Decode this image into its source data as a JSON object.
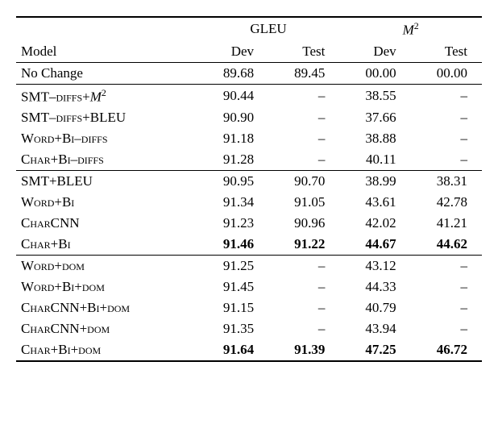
{
  "headers": {
    "gleu": "GLEU",
    "m2_html": "<span class=\"mitalic\">M</span><span class=\"sup\">2</span>",
    "model": "Model",
    "dev": "Dev",
    "test": "Test"
  },
  "groups": [
    {
      "rows": [
        {
          "label_html": "No Change",
          "gleu_dev": "89.68",
          "gleu_test": "89.45",
          "m2_dev": "00.00",
          "m2_test": "00.00",
          "bold": false
        }
      ]
    },
    {
      "rows": [
        {
          "label_html": "SMT<span class=\"sc\">–diffs</span>+<span class=\"mitalic\">M</span><span class=\"sup\">2</span>",
          "gleu_dev": "90.44",
          "gleu_test": "–",
          "m2_dev": "38.55",
          "m2_test": "–",
          "bold": false
        },
        {
          "label_html": "SMT<span class=\"sc\">–diffs</span>+BLEU",
          "gleu_dev": "90.90",
          "gleu_test": "–",
          "m2_dev": "37.66",
          "m2_test": "–",
          "bold": false
        },
        {
          "label_html": "<span class=\"sc\">Word+Bi–diffs</span>",
          "gleu_dev": "91.18",
          "gleu_test": "–",
          "m2_dev": "38.88",
          "m2_test": "–",
          "bold": false
        },
        {
          "label_html": "<span class=\"sc\">Char+Bi–diffs</span>",
          "gleu_dev": "91.28",
          "gleu_test": "–",
          "m2_dev": "40.11",
          "m2_test": "–",
          "bold": false
        }
      ]
    },
    {
      "rows": [
        {
          "label_html": "SMT+BLEU",
          "gleu_dev": "90.95",
          "gleu_test": "90.70",
          "m2_dev": "38.99",
          "m2_test": "38.31",
          "bold": false
        },
        {
          "label_html": "<span class=\"sc\">Word+Bi</span>",
          "gleu_dev": "91.34",
          "gleu_test": "91.05",
          "m2_dev": "43.61",
          "m2_test": "42.78",
          "bold": false
        },
        {
          "label_html": "<span class=\"sc\">CharCNN</span>",
          "gleu_dev": "91.23",
          "gleu_test": "90.96",
          "m2_dev": "42.02",
          "m2_test": "41.21",
          "bold": false
        },
        {
          "label_html": "<span class=\"sc\">Char+Bi</span>",
          "gleu_dev": "91.46",
          "gleu_test": "91.22",
          "m2_dev": "44.67",
          "m2_test": "44.62",
          "bold": true
        }
      ]
    },
    {
      "rows": [
        {
          "label_html": "<span class=\"sc\">Word+dom</span>",
          "gleu_dev": "91.25",
          "gleu_test": "–",
          "m2_dev": "43.12",
          "m2_test": "–",
          "bold": false
        },
        {
          "label_html": "<span class=\"sc\">Word+Bi+dom</span>",
          "gleu_dev": "91.45",
          "gleu_test": "–",
          "m2_dev": "44.33",
          "m2_test": "–",
          "bold": false
        },
        {
          "label_html": "<span class=\"sc\">CharCNN+Bi+dom</span>",
          "gleu_dev": "91.15",
          "gleu_test": "–",
          "m2_dev": "40.79",
          "m2_test": "–",
          "bold": false
        },
        {
          "label_html": "<span class=\"sc\">CharCNN+dom</span>",
          "gleu_dev": "91.35",
          "gleu_test": "–",
          "m2_dev": "43.94",
          "m2_test": "–",
          "bold": false
        },
        {
          "label_html": "<span class=\"sc\">Char+Bi+dom</span>",
          "gleu_dev": "91.64",
          "gleu_test": "91.39",
          "m2_dev": "47.25",
          "m2_test": "46.72",
          "bold": true
        }
      ]
    }
  ]
}
